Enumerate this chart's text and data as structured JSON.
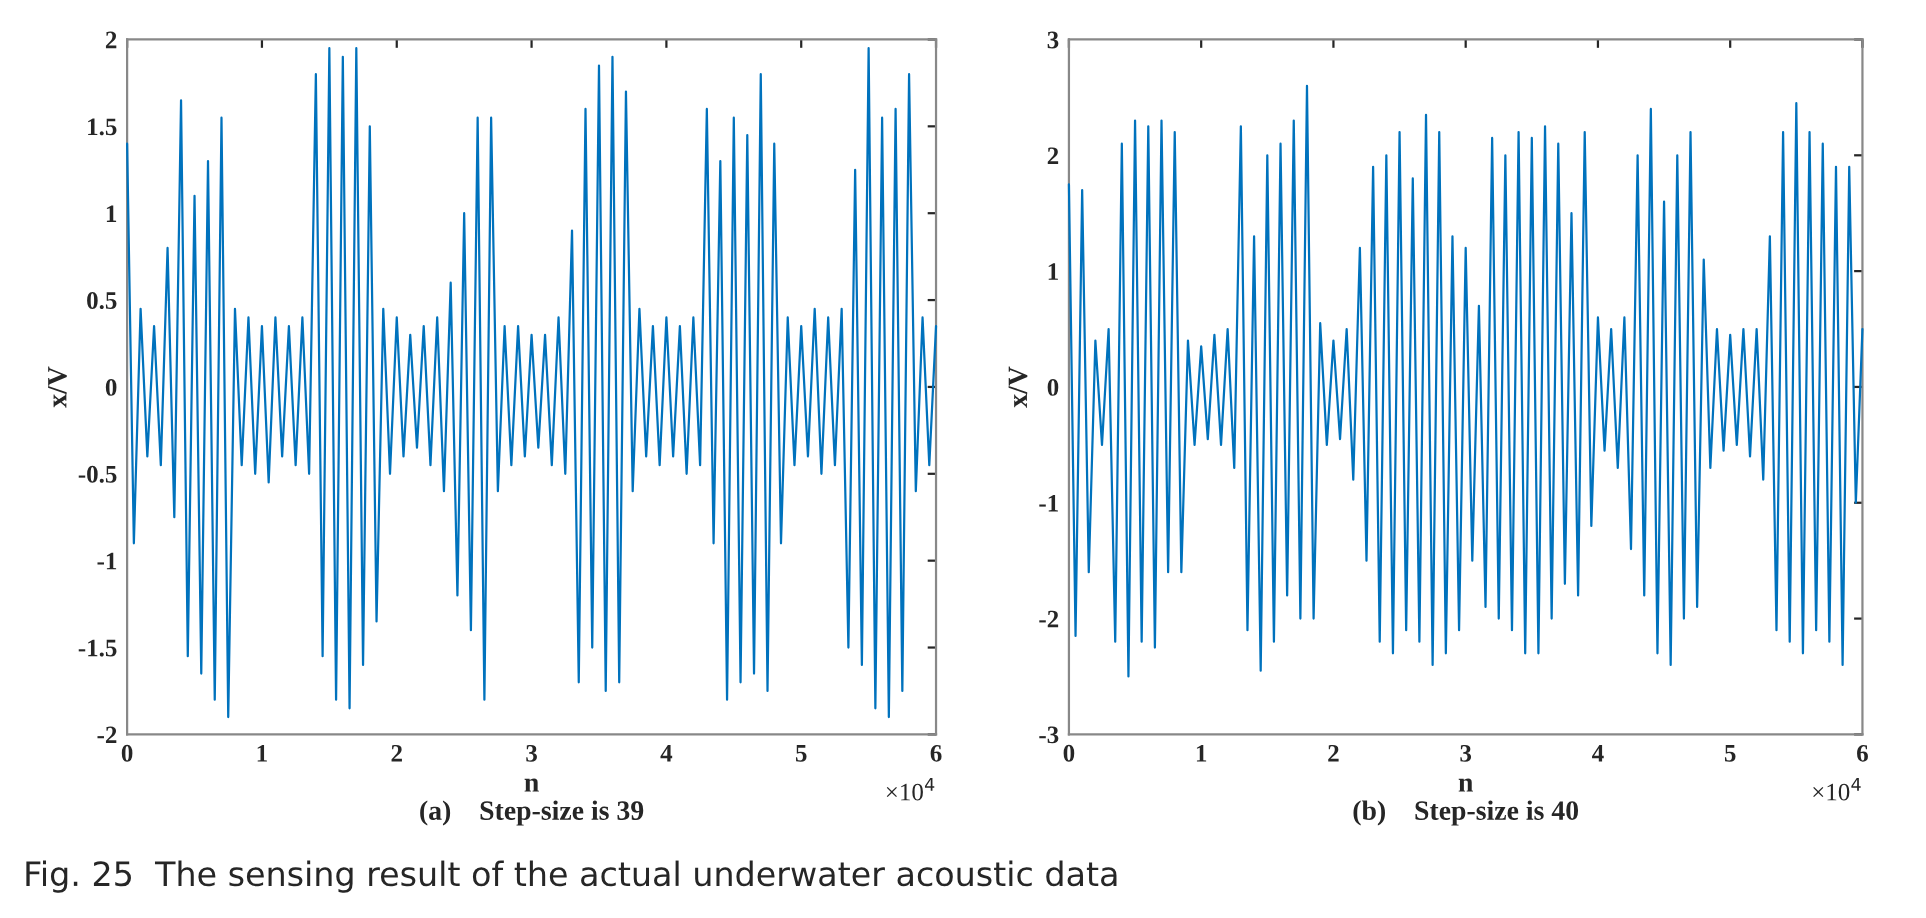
{
  "chart_data": [
    {
      "type": "line",
      "xlabel": "n",
      "ylabel": "x/V",
      "subtitle": "(a)    Step-size is 39",
      "xlim": [
        0,
        6
      ],
      "xticks": [
        0,
        1,
        2,
        3,
        4,
        5,
        6
      ],
      "ylim": [
        -2,
        2
      ],
      "yticks": [
        -2,
        -1.5,
        -1,
        -0.5,
        0,
        0.5,
        1,
        1.5,
        2
      ],
      "grid": false,
      "legend": false,
      "line_style": "solid",
      "marker": "none",
      "annotations": [
        "×10$^{4}$",
        "Fig. 25  The sensing result of the actual underwater acoustic data"
      ],
      "x": [
        0,
        0.05,
        0.1,
        0.15,
        0.2,
        0.25,
        0.3,
        0.35,
        0.4,
        0.45,
        0.5,
        0.55,
        0.6,
        0.65,
        0.7,
        0.75,
        0.8,
        0.85,
        0.9,
        0.95,
        1,
        1.05,
        1.1,
        1.15,
        1.2,
        1.25,
        1.3,
        1.35,
        1.4,
        1.45,
        1.5,
        1.55,
        1.6,
        1.65,
        1.7,
        1.75,
        1.8,
        1.85,
        1.9,
        1.95,
        2,
        2.05,
        2.1,
        2.15,
        2.2,
        2.25,
        2.3,
        2.35,
        2.4,
        2.45,
        2.5,
        2.55,
        2.6,
        2.65,
        2.7,
        2.75,
        2.8,
        2.85,
        2.9,
        2.95,
        3,
        3.05,
        3.1,
        3.15,
        3.2,
        3.25,
        3.3,
        3.35,
        3.4,
        3.45,
        3.5,
        3.55,
        3.6,
        3.65,
        3.7,
        3.75,
        3.8,
        3.85,
        3.9,
        3.95,
        4,
        4.05,
        4.1,
        4.15,
        4.2,
        4.25,
        4.3,
        4.35,
        4.4,
        4.45,
        4.5,
        4.55,
        4.6,
        4.65,
        4.7,
        4.75,
        4.8,
        4.85,
        4.9,
        4.95,
        5,
        5.05,
        5.1,
        5.15,
        5.2,
        5.25,
        5.3,
        5.35,
        5.4,
        5.45,
        5.5,
        5.55,
        5.6,
        5.65,
        5.7,
        5.75,
        5.8,
        5.85,
        5.9,
        5.95,
        6
      ],
      "series": [
        {
          "color": "#0072bd",
          "values": [
            1.4,
            -0.9,
            0.45,
            -0.4,
            0.35,
            -0.45,
            0.8,
            -0.75,
            1.65,
            -1.55,
            1.1,
            -1.65,
            1.3,
            -1.8,
            1.55,
            -1.9,
            0.45,
            -0.45,
            0.4,
            -0.5,
            0.35,
            -0.55,
            0.4,
            -0.4,
            0.35,
            -0.45,
            0.4,
            -0.5,
            1.8,
            -1.55,
            1.95,
            -1.8,
            1.9,
            -1.85,
            1.95,
            -1.6,
            1.5,
            -1.35,
            0.45,
            -0.5,
            0.4,
            -0.4,
            0.3,
            -0.35,
            0.35,
            -0.45,
            0.4,
            -0.6,
            0.6,
            -1.2,
            1.0,
            -1.4,
            1.55,
            -1.8,
            1.55,
            -0.6,
            0.35,
            -0.45,
            0.35,
            -0.4,
            0.3,
            -0.35,
            0.3,
            -0.45,
            0.4,
            -0.5,
            0.9,
            -1.7,
            1.6,
            -1.5,
            1.85,
            -1.75,
            1.9,
            -1.7,
            1.7,
            -0.6,
            0.45,
            -0.4,
            0.35,
            -0.45,
            0.4,
            -0.4,
            0.35,
            -0.5,
            0.4,
            -0.45,
            1.6,
            -0.9,
            1.3,
            -1.8,
            1.55,
            -1.7,
            1.45,
            -1.65,
            1.8,
            -1.75,
            1.4,
            -0.9,
            0.4,
            -0.45,
            0.35,
            -0.4,
            0.45,
            -0.5,
            0.4,
            -0.45,
            0.45,
            -1.5,
            1.25,
            -1.6,
            1.95,
            -1.85,
            1.55,
            -1.9,
            1.6,
            -1.75,
            1.8,
            -0.6,
            0.4,
            -0.45,
            0.35
          ]
        }
      ]
    },
    {
      "type": "line",
      "xlabel": "n",
      "ylabel": "x/V",
      "subtitle": "(b)    Step-size is 40",
      "xlim": [
        0,
        6
      ],
      "xticks": [
        0,
        1,
        2,
        3,
        4,
        5,
        6
      ],
      "ylim": [
        -3,
        3
      ],
      "yticks": [
        -3,
        -2,
        -1,
        0,
        1,
        2,
        3
      ],
      "grid": false,
      "legend": false,
      "line_style": "solid",
      "marker": "none",
      "annotations": [
        "×10$^{4}$"
      ],
      "x": [
        0,
        0.05,
        0.1,
        0.15,
        0.2,
        0.25,
        0.3,
        0.35,
        0.4,
        0.45,
        0.5,
        0.55,
        0.6,
        0.65,
        0.7,
        0.75,
        0.8,
        0.85,
        0.9,
        0.95,
        1,
        1.05,
        1.1,
        1.15,
        1.2,
        1.25,
        1.3,
        1.35,
        1.4,
        1.45,
        1.5,
        1.55,
        1.6,
        1.65,
        1.7,
        1.75,
        1.8,
        1.85,
        1.9,
        1.95,
        2,
        2.05,
        2.1,
        2.15,
        2.2,
        2.25,
        2.3,
        2.35,
        2.4,
        2.45,
        2.5,
        2.55,
        2.6,
        2.65,
        2.7,
        2.75,
        2.8,
        2.85,
        2.9,
        2.95,
        3,
        3.05,
        3.1,
        3.15,
        3.2,
        3.25,
        3.3,
        3.35,
        3.4,
        3.45,
        3.5,
        3.55,
        3.6,
        3.65,
        3.7,
        3.75,
        3.8,
        3.85,
        3.9,
        3.95,
        4,
        4.05,
        4.1,
        4.15,
        4.2,
        4.25,
        4.3,
        4.35,
        4.4,
        4.45,
        4.5,
        4.55,
        4.6,
        4.65,
        4.7,
        4.75,
        4.8,
        4.85,
        4.9,
        4.95,
        5,
        5.05,
        5.1,
        5.15,
        5.2,
        5.25,
        5.3,
        5.35,
        5.4,
        5.45,
        5.5,
        5.55,
        5.6,
        5.65,
        5.7,
        5.75,
        5.8,
        5.85,
        5.9,
        5.95,
        6
      ],
      "series": [
        {
          "color": "#0072bd",
          "values": [
            1.75,
            -2.15,
            1.7,
            -1.6,
            0.4,
            -0.5,
            0.5,
            -2.2,
            2.1,
            -2.5,
            2.3,
            -2.2,
            2.25,
            -2.25,
            2.3,
            -1.6,
            2.2,
            -1.6,
            0.4,
            -0.5,
            0.35,
            -0.45,
            0.45,
            -0.5,
            0.5,
            -0.7,
            2.25,
            -2.1,
            1.3,
            -2.45,
            2.0,
            -2.2,
            2.1,
            -1.8,
            2.3,
            -2.0,
            2.6,
            -2.0,
            0.55,
            -0.5,
            0.4,
            -0.45,
            0.5,
            -0.8,
            1.2,
            -1.5,
            1.9,
            -2.2,
            2.0,
            -2.3,
            2.2,
            -2.1,
            1.8,
            -2.2,
            2.35,
            -2.4,
            2.2,
            -2.3,
            1.3,
            -2.1,
            1.2,
            -1.5,
            0.7,
            -1.9,
            2.15,
            -2.0,
            2.0,
            -2.1,
            2.2,
            -2.3,
            2.15,
            -2.3,
            2.25,
            -2.0,
            2.1,
            -1.7,
            1.5,
            -1.8,
            2.2,
            -1.2,
            0.6,
            -0.55,
            0.5,
            -0.7,
            0.6,
            -1.4,
            2.0,
            -1.8,
            2.4,
            -2.3,
            1.6,
            -2.4,
            2.0,
            -2.0,
            2.2,
            -1.9,
            1.1,
            -0.7,
            0.5,
            -0.55,
            0.45,
            -0.5,
            0.5,
            -0.6,
            0.5,
            -0.8,
            1.3,
            -2.1,
            2.2,
            -2.2,
            2.45,
            -2.3,
            2.2,
            -2.1,
            2.1,
            -2.2,
            1.9,
            -2.4,
            1.9,
            -1.0,
            0.5
          ]
        }
      ]
    }
  ]
}
